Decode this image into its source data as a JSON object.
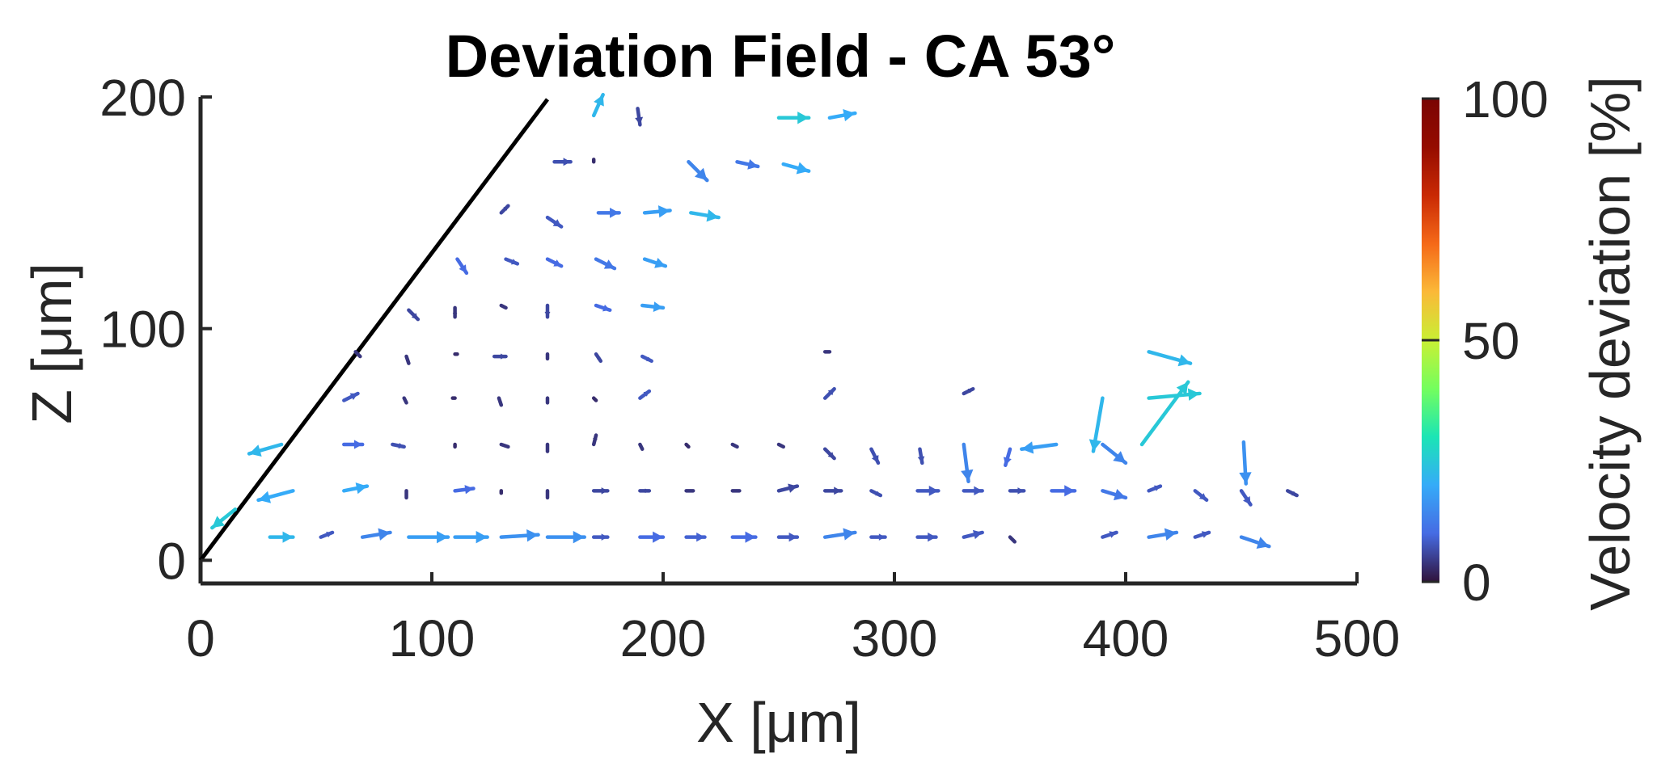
{
  "chart_data": {
    "type": "quiver",
    "title": "Deviation Field - CA 53°",
    "xlabel": "X [μm]",
    "ylabel": "Z [μm]",
    "xlim": [
      0,
      500
    ],
    "ylim": [
      -10,
      200
    ],
    "xticks": [
      0,
      100,
      200,
      300,
      400,
      500
    ],
    "yticks": [
      0,
      100,
      200
    ],
    "contact_line": {
      "x": [
        0,
        150
      ],
      "z": [
        0,
        199
      ]
    },
    "colorbar": {
      "label": "Velocity deviation [%]",
      "range": [
        0,
        100
      ],
      "ticks": [
        0,
        50,
        100
      ],
      "colormap": "turbo"
    },
    "vectors": [
      {
        "x": 170,
        "z": 192,
        "u": 4,
        "v": 9,
        "m": 22
      },
      {
        "x": 189,
        "z": 195,
        "u": 1,
        "v": -7,
        "m": 6
      },
      {
        "x": 250,
        "z": 191,
        "u": 13,
        "v": 0,
        "m": 25
      },
      {
        "x": 272,
        "z": 191,
        "u": 11,
        "v": 2,
        "m": 20
      },
      {
        "x": 153,
        "z": 172,
        "u": 7,
        "v": 0,
        "m": 7
      },
      {
        "x": 170,
        "z": 173,
        "u": 0,
        "v": -1,
        "m": 3
      },
      {
        "x": 211,
        "z": 172,
        "u": 8,
        "v": -8,
        "m": 14
      },
      {
        "x": 232,
        "z": 172,
        "u": 9,
        "v": -2,
        "m": 12
      },
      {
        "x": 252,
        "z": 171,
        "u": 11,
        "v": -3,
        "m": 20
      },
      {
        "x": 130,
        "z": 150,
        "u": 3,
        "v": 3,
        "m": 6
      },
      {
        "x": 150,
        "z": 148,
        "u": 6,
        "v": -4,
        "m": 8
      },
      {
        "x": 172,
        "z": 150,
        "u": 9,
        "v": 0,
        "m": 12
      },
      {
        "x": 192,
        "z": 150,
        "u": 11,
        "v": 1,
        "m": 18
      },
      {
        "x": 212,
        "z": 150,
        "u": 12,
        "v": -2,
        "m": 22
      },
      {
        "x": 111,
        "z": 130,
        "u": 4,
        "v": -6,
        "m": 10
      },
      {
        "x": 132,
        "z": 130,
        "u": 5,
        "v": -2,
        "m": 8
      },
      {
        "x": 150,
        "z": 130,
        "u": 6,
        "v": -3,
        "m": 10
      },
      {
        "x": 171,
        "z": 130,
        "u": 8,
        "v": -4,
        "m": 12
      },
      {
        "x": 192,
        "z": 130,
        "u": 9,
        "v": -3,
        "m": 18
      },
      {
        "x": 90,
        "z": 108,
        "u": 4,
        "v": -4,
        "m": 6
      },
      {
        "x": 110,
        "z": 109,
        "u": 0,
        "v": -4,
        "m": 4
      },
      {
        "x": 130,
        "z": 110,
        "u": 2,
        "v": -1,
        "m": 4
      },
      {
        "x": 150,
        "z": 110,
        "u": 0,
        "v": -5,
        "m": 6
      },
      {
        "x": 171,
        "z": 110,
        "u": 6,
        "v": -2,
        "m": 10
      },
      {
        "x": 191,
        "z": 110,
        "u": 9,
        "v": -1,
        "m": 18
      },
      {
        "x": 69,
        "z": 88,
        "u": -2,
        "v": 2,
        "m": 4
      },
      {
        "x": 89,
        "z": 88,
        "u": 1,
        "v": -3,
        "m": 4
      },
      {
        "x": 110,
        "z": 89,
        "u": 1,
        "v": 0,
        "m": 3
      },
      {
        "x": 127,
        "z": 88,
        "u": 5,
        "v": 0,
        "m": 6
      },
      {
        "x": 150,
        "z": 89,
        "u": 0,
        "v": -2,
        "m": 4
      },
      {
        "x": 171,
        "z": 89,
        "u": 2,
        "v": -3,
        "m": 6
      },
      {
        "x": 191,
        "z": 88,
        "u": 4,
        "v": -2,
        "m": 8
      },
      {
        "x": 270,
        "z": 90,
        "u": 2,
        "v": 0,
        "m": 4
      },
      {
        "x": 62,
        "z": 69,
        "u": 6,
        "v": 3,
        "m": 8
      },
      {
        "x": 88,
        "z": 70,
        "u": 1,
        "v": -2,
        "m": 4
      },
      {
        "x": 109,
        "z": 70,
        "u": 1,
        "v": 0,
        "m": 3
      },
      {
        "x": 129,
        "z": 70,
        "u": 1,
        "v": -3,
        "m": 4
      },
      {
        "x": 150,
        "z": 70,
        "u": 0,
        "v": -2,
        "m": 4
      },
      {
        "x": 170,
        "z": 70,
        "u": 1,
        "v": -1,
        "m": 3
      },
      {
        "x": 190,
        "z": 70,
        "u": 4,
        "v": 3,
        "m": 8
      },
      {
        "x": 270,
        "z": 70,
        "u": 4,
        "v": 4,
        "m": 7
      },
      {
        "x": 330,
        "z": 72,
        "u": 4,
        "v": 2,
        "m": 6
      },
      {
        "x": 35,
        "z": 50,
        "u": -14,
        "v": -4,
        "m": 22
      },
      {
        "x": 62,
        "z": 50,
        "u": 8,
        "v": 0,
        "m": 10
      },
      {
        "x": 83,
        "z": 50,
        "u": 5,
        "v": -1,
        "m": 7
      },
      {
        "x": 110,
        "z": 50,
        "u": 0,
        "v": -1,
        "m": 3
      },
      {
        "x": 130,
        "z": 50,
        "u": 3,
        "v": -1,
        "m": 4
      },
      {
        "x": 150,
        "z": 50,
        "u": 0,
        "v": -3,
        "m": 4
      },
      {
        "x": 170,
        "z": 50,
        "u": 1,
        "v": 4,
        "m": 4
      },
      {
        "x": 190,
        "z": 50,
        "u": 1,
        "v": -2,
        "m": 4
      },
      {
        "x": 210,
        "z": 50,
        "u": 1,
        "v": -1,
        "m": 3
      },
      {
        "x": 230,
        "z": 50,
        "u": 2,
        "v": -1,
        "m": 4
      },
      {
        "x": 250,
        "z": 50,
        "u": 2,
        "v": -1,
        "m": 4
      },
      {
        "x": 270,
        "z": 48,
        "u": 4,
        "v": -4,
        "m": 6
      },
      {
        "x": 290,
        "z": 48,
        "u": 3,
        "v": -6,
        "m": 7
      },
      {
        "x": 311,
        "z": 48,
        "u": 1,
        "v": -6,
        "m": 7
      },
      {
        "x": 330,
        "z": 50,
        "u": 2,
        "v": -16,
        "m": 14
      },
      {
        "x": 350,
        "z": 48,
        "u": -2,
        "v": -7,
        "m": 10
      },
      {
        "x": 370,
        "z": 50,
        "u": -15,
        "v": -2,
        "m": 18
      },
      {
        "x": 390,
        "z": 70,
        "u": -4,
        "v": -23,
        "m": 22
      },
      {
        "x": 390,
        "z": 50,
        "u": 10,
        "v": -8,
        "m": 14
      },
      {
        "x": 407,
        "z": 50,
        "u": 20,
        "v": 27,
        "m": 25
      },
      {
        "x": 410,
        "z": 90,
        "u": 18,
        "v": -5,
        "m": 22
      },
      {
        "x": 410,
        "z": 70,
        "u": 22,
        "v": 2,
        "m": 25
      },
      {
        "x": 451,
        "z": 51,
        "u": 1,
        "v": -18,
        "m": 16
      },
      {
        "x": 40,
        "z": 30,
        "u": -15,
        "v": -4,
        "m": 20
      },
      {
        "x": 62,
        "z": 30,
        "u": 10,
        "v": 2,
        "m": 20
      },
      {
        "x": 89,
        "z": 30,
        "u": 0,
        "v": -3,
        "m": 4
      },
      {
        "x": 110,
        "z": 30,
        "u": 8,
        "v": 1,
        "m": 10
      },
      {
        "x": 130,
        "z": 30,
        "u": 0,
        "v": -1,
        "m": 3
      },
      {
        "x": 150,
        "z": 30,
        "u": 0,
        "v": -3,
        "m": 4
      },
      {
        "x": 170,
        "z": 30,
        "u": 6,
        "v": 0,
        "m": 6
      },
      {
        "x": 190,
        "z": 30,
        "u": 4,
        "v": 0,
        "m": 6
      },
      {
        "x": 210,
        "z": 30,
        "u": 3,
        "v": 0,
        "m": 4
      },
      {
        "x": 230,
        "z": 30,
        "u": 3,
        "v": 0,
        "m": 4
      },
      {
        "x": 250,
        "z": 30,
        "u": 8,
        "v": 2,
        "m": 6
      },
      {
        "x": 270,
        "z": 30,
        "u": 7,
        "v": 0,
        "m": 6
      },
      {
        "x": 290,
        "z": 30,
        "u": 4,
        "v": -2,
        "m": 7
      },
      {
        "x": 310,
        "z": 30,
        "u": 9,
        "v": 0,
        "m": 8
      },
      {
        "x": 330,
        "z": 30,
        "u": 8,
        "v": 0,
        "m": 8
      },
      {
        "x": 350,
        "z": 30,
        "u": 6,
        "v": 0,
        "m": 7
      },
      {
        "x": 368,
        "z": 30,
        "u": 10,
        "v": 0,
        "m": 10
      },
      {
        "x": 390,
        "z": 30,
        "u": 10,
        "v": -3,
        "m": 12
      },
      {
        "x": 410,
        "z": 30,
        "u": 5,
        "v": 2,
        "m": 8
      },
      {
        "x": 430,
        "z": 30,
        "u": 5,
        "v": -4,
        "m": 8
      },
      {
        "x": 450,
        "z": 30,
        "u": 4,
        "v": -6,
        "m": 8
      },
      {
        "x": 470,
        "z": 30,
        "u": 4,
        "v": -2,
        "m": 6
      },
      {
        "x": 15,
        "z": 22,
        "u": -10,
        "v": -8,
        "m": 25
      },
      {
        "x": 30,
        "z": 10,
        "u": 10,
        "v": 0,
        "m": 22
      },
      {
        "x": 52,
        "z": 10,
        "u": 5,
        "v": 2,
        "m": 8
      },
      {
        "x": 70,
        "z": 10,
        "u": 12,
        "v": 2,
        "m": 14
      },
      {
        "x": 90,
        "z": 10,
        "u": 17,
        "v": 0,
        "m": 18
      },
      {
        "x": 110,
        "z": 10,
        "u": 14,
        "v": 0,
        "m": 18
      },
      {
        "x": 130,
        "z": 10,
        "u": 16,
        "v": 1,
        "m": 16
      },
      {
        "x": 150,
        "z": 10,
        "u": 16,
        "v": 0,
        "m": 16
      },
      {
        "x": 170,
        "z": 10,
        "u": 6,
        "v": 0,
        "m": 8
      },
      {
        "x": 190,
        "z": 10,
        "u": 10,
        "v": 0,
        "m": 10
      },
      {
        "x": 210,
        "z": 10,
        "u": 8,
        "v": 0,
        "m": 9
      },
      {
        "x": 230,
        "z": 10,
        "u": 10,
        "v": 0,
        "m": 10
      },
      {
        "x": 250,
        "z": 10,
        "u": 8,
        "v": 0,
        "m": 8
      },
      {
        "x": 270,
        "z": 10,
        "u": 13,
        "v": 2,
        "m": 14
      },
      {
        "x": 290,
        "z": 10,
        "u": 6,
        "v": 0,
        "m": 8
      },
      {
        "x": 310,
        "z": 10,
        "u": 8,
        "v": 0,
        "m": 8
      },
      {
        "x": 330,
        "z": 10,
        "u": 8,
        "v": 2,
        "m": 8
      },
      {
        "x": 350,
        "z": 10,
        "u": 2,
        "v": -2,
        "m": 4
      },
      {
        "x": 390,
        "z": 10,
        "u": 6,
        "v": 2,
        "m": 8
      },
      {
        "x": 410,
        "z": 10,
        "u": 12,
        "v": 2,
        "m": 14
      },
      {
        "x": 430,
        "z": 10,
        "u": 6,
        "v": 2,
        "m": 8
      },
      {
        "x": 450,
        "z": 10,
        "u": 12,
        "v": -4,
        "m": 14
      }
    ]
  }
}
